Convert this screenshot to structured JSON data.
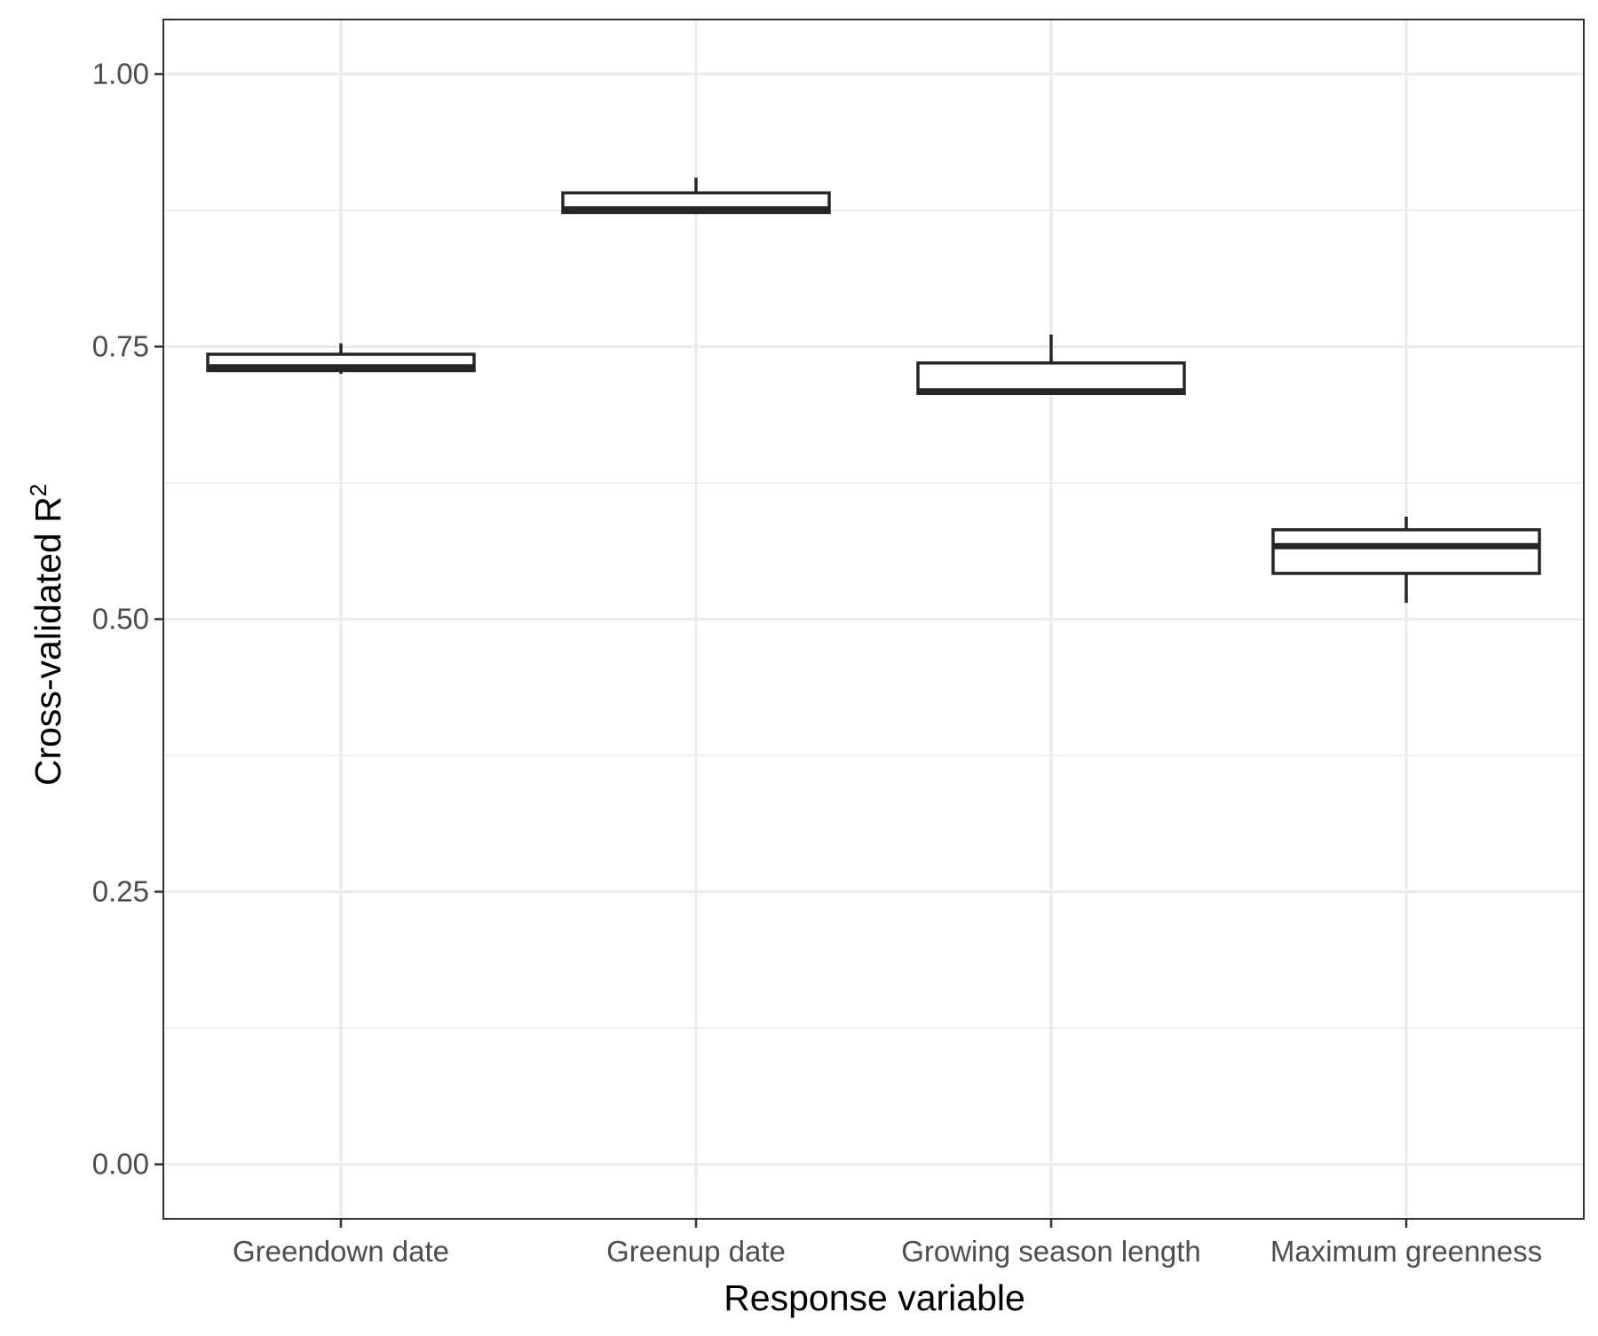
{
  "chart_data": {
    "type": "box",
    "xlabel": "Response variable",
    "ylabel": "Cross-validated R",
    "ylabel_superscript": "2",
    "ylim": [
      -0.05,
      1.05
    ],
    "yticks": [
      0.0,
      0.25,
      0.5,
      0.75,
      1.0
    ],
    "ytick_labels": [
      "0.00",
      "0.25",
      "0.50",
      "0.75",
      "1.00"
    ],
    "grid": true,
    "categories": [
      "Greendown date",
      "Greenup date",
      "Growing season length",
      "Maximum greenness"
    ],
    "boxes": [
      {
        "category": "Greendown date",
        "min": 0.725,
        "q1": 0.728,
        "median": 0.731,
        "q3": 0.743,
        "max": 0.753
      },
      {
        "category": "Greenup date",
        "min": 0.873,
        "q1": 0.873,
        "median": 0.876,
        "q3": 0.891,
        "max": 0.905
      },
      {
        "category": "Growing season length",
        "min": 0.707,
        "q1": 0.707,
        "median": 0.709,
        "q3": 0.735,
        "max": 0.761
      },
      {
        "category": "Maximum greenness",
        "min": 0.515,
        "q1": 0.542,
        "median": 0.567,
        "q3": 0.582,
        "max": 0.594
      }
    ],
    "colors": {
      "box_stroke": "#262626",
      "box_fill": "#ffffff",
      "grid": "#ebebeb",
      "panel_border": "#333333",
      "tick_label": "#4d4d4d",
      "axis_title": "#000000"
    }
  }
}
